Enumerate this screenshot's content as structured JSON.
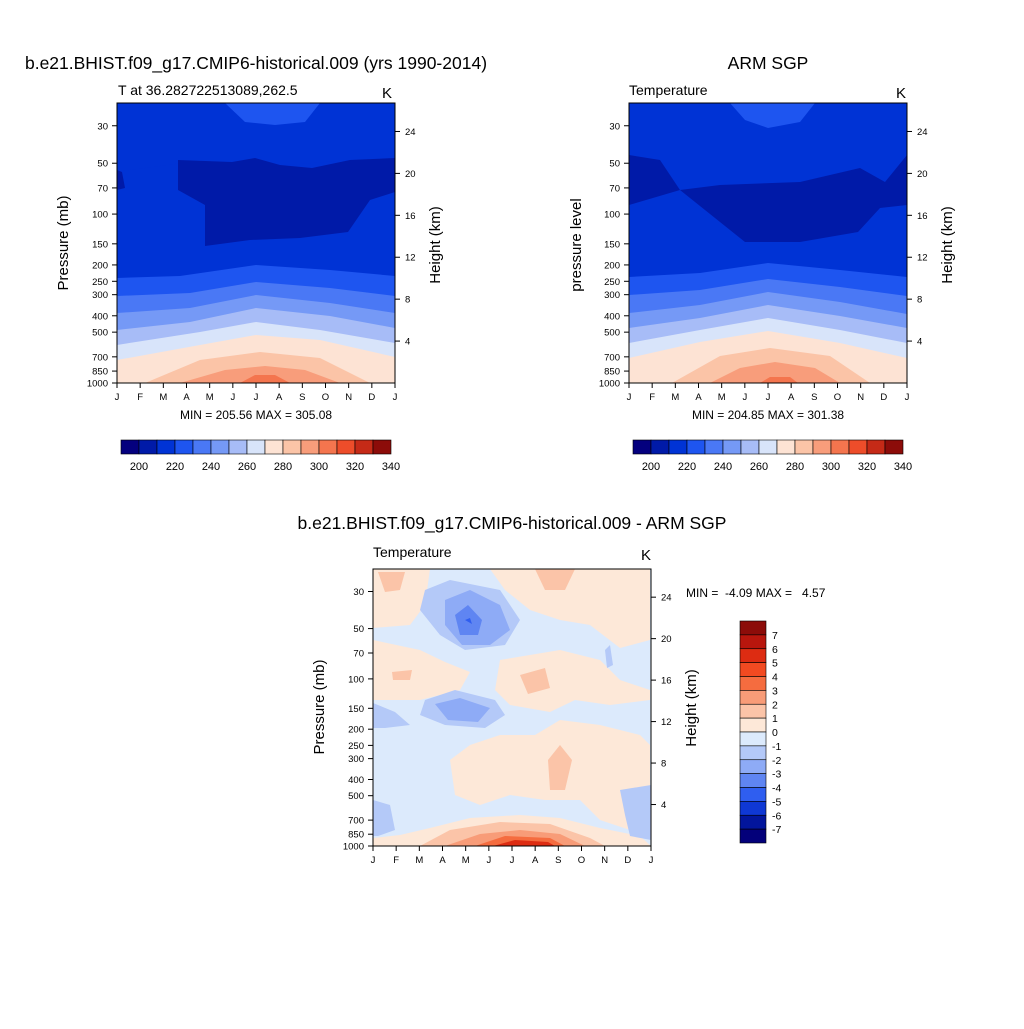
{
  "chart_data": [
    {
      "type": "heatmap",
      "title": "b.e21.BHIST.f09_g17.CMIP6-historical.009 (yrs 1990-2014)",
      "subtitle_left": "T at 36.282722513089,262.5",
      "subtitle_right": "K",
      "ylabel": "Pressure (mb)",
      "ylabel_right": "Height (km)",
      "x_ticks": [
        "J",
        "F",
        "M",
        "A",
        "M",
        "J",
        "J",
        "A",
        "S",
        "O",
        "N",
        "D",
        "J"
      ],
      "y_ticks": [
        "30",
        "50",
        "70",
        "100",
        "150",
        "200",
        "250",
        "300",
        "400",
        "500",
        "700",
        "850",
        "1000"
      ],
      "y_ticks_right": [
        "24",
        "20",
        "16",
        "12",
        "8",
        "4"
      ],
      "stats": "MIN = 205.56 MAX = 305.08",
      "colorbar_labels": [
        "200",
        "220",
        "240",
        "260",
        "280",
        "300",
        "320",
        "340"
      ],
      "min": 205.56,
      "max": 305.08
    },
    {
      "type": "heatmap",
      "title": "ARM SGP",
      "subtitle_left": "Temperature",
      "subtitle_right": "K",
      "ylabel": "pressure level",
      "ylabel_right": "Height (km)",
      "x_ticks": [
        "J",
        "F",
        "M",
        "A",
        "M",
        "J",
        "J",
        "A",
        "S",
        "O",
        "N",
        "D",
        "J"
      ],
      "y_ticks": [
        "30",
        "50",
        "70",
        "100",
        "150",
        "200",
        "250",
        "300",
        "400",
        "500",
        "700",
        "850",
        "1000"
      ],
      "y_ticks_right": [
        "24",
        "20",
        "16",
        "12",
        "8",
        "4"
      ],
      "stats": "MIN = 204.85 MAX = 301.38",
      "colorbar_labels": [
        "200",
        "220",
        "240",
        "260",
        "280",
        "300",
        "320",
        "340"
      ],
      "min": 204.85,
      "max": 301.38
    },
    {
      "type": "heatmap",
      "title": "b.e21.BHIST.f09_g17.CMIP6-historical.009 - ARM SGP",
      "subtitle_left": "Temperature",
      "subtitle_right": "K",
      "ylabel": "Pressure (mb)",
      "ylabel_right": "Height (km)",
      "x_ticks": [
        "J",
        "F",
        "M",
        "A",
        "M",
        "J",
        "J",
        "A",
        "S",
        "O",
        "N",
        "D",
        "J"
      ],
      "y_ticks": [
        "30",
        "50",
        "70",
        "100",
        "150",
        "200",
        "250",
        "300",
        "400",
        "500",
        "700",
        "850",
        "1000"
      ],
      "y_ticks_right": [
        "24",
        "20",
        "16",
        "12",
        "8",
        "4"
      ],
      "stats": "MIN =  -4.09 MAX =   4.57",
      "colorbar_labels": [
        "7",
        "6",
        "5",
        "4",
        "3",
        "2",
        "1",
        "0",
        "-1",
        "-2",
        "-3",
        "-4",
        "-5",
        "-6",
        "-7"
      ],
      "min": -4.09,
      "max": 4.57
    }
  ],
  "colors": {
    "abs_scale": [
      "#04007e",
      "#001aa8",
      "#0033d5",
      "#1e55f0",
      "#4a78f5",
      "#7599f6",
      "#a7bcf7",
      "#d8e4fa",
      "#fde3d4",
      "#fbc4a7",
      "#f89d7b",
      "#f4754e",
      "#ed4d2a",
      "#c52a17",
      "#8c0c09"
    ],
    "diff_scale": [
      "#8c0c09",
      "#b8160d",
      "#dd2c12",
      "#f24a21",
      "#f56c3f",
      "#f89c78",
      "#fbc4a8",
      "#fde8d8",
      "#dceafc",
      "#b4c9f8",
      "#8eabf6",
      "#5f85f2",
      "#2f5ef0",
      "#0f38d4",
      "#02159c",
      "#03007a"
    ]
  }
}
